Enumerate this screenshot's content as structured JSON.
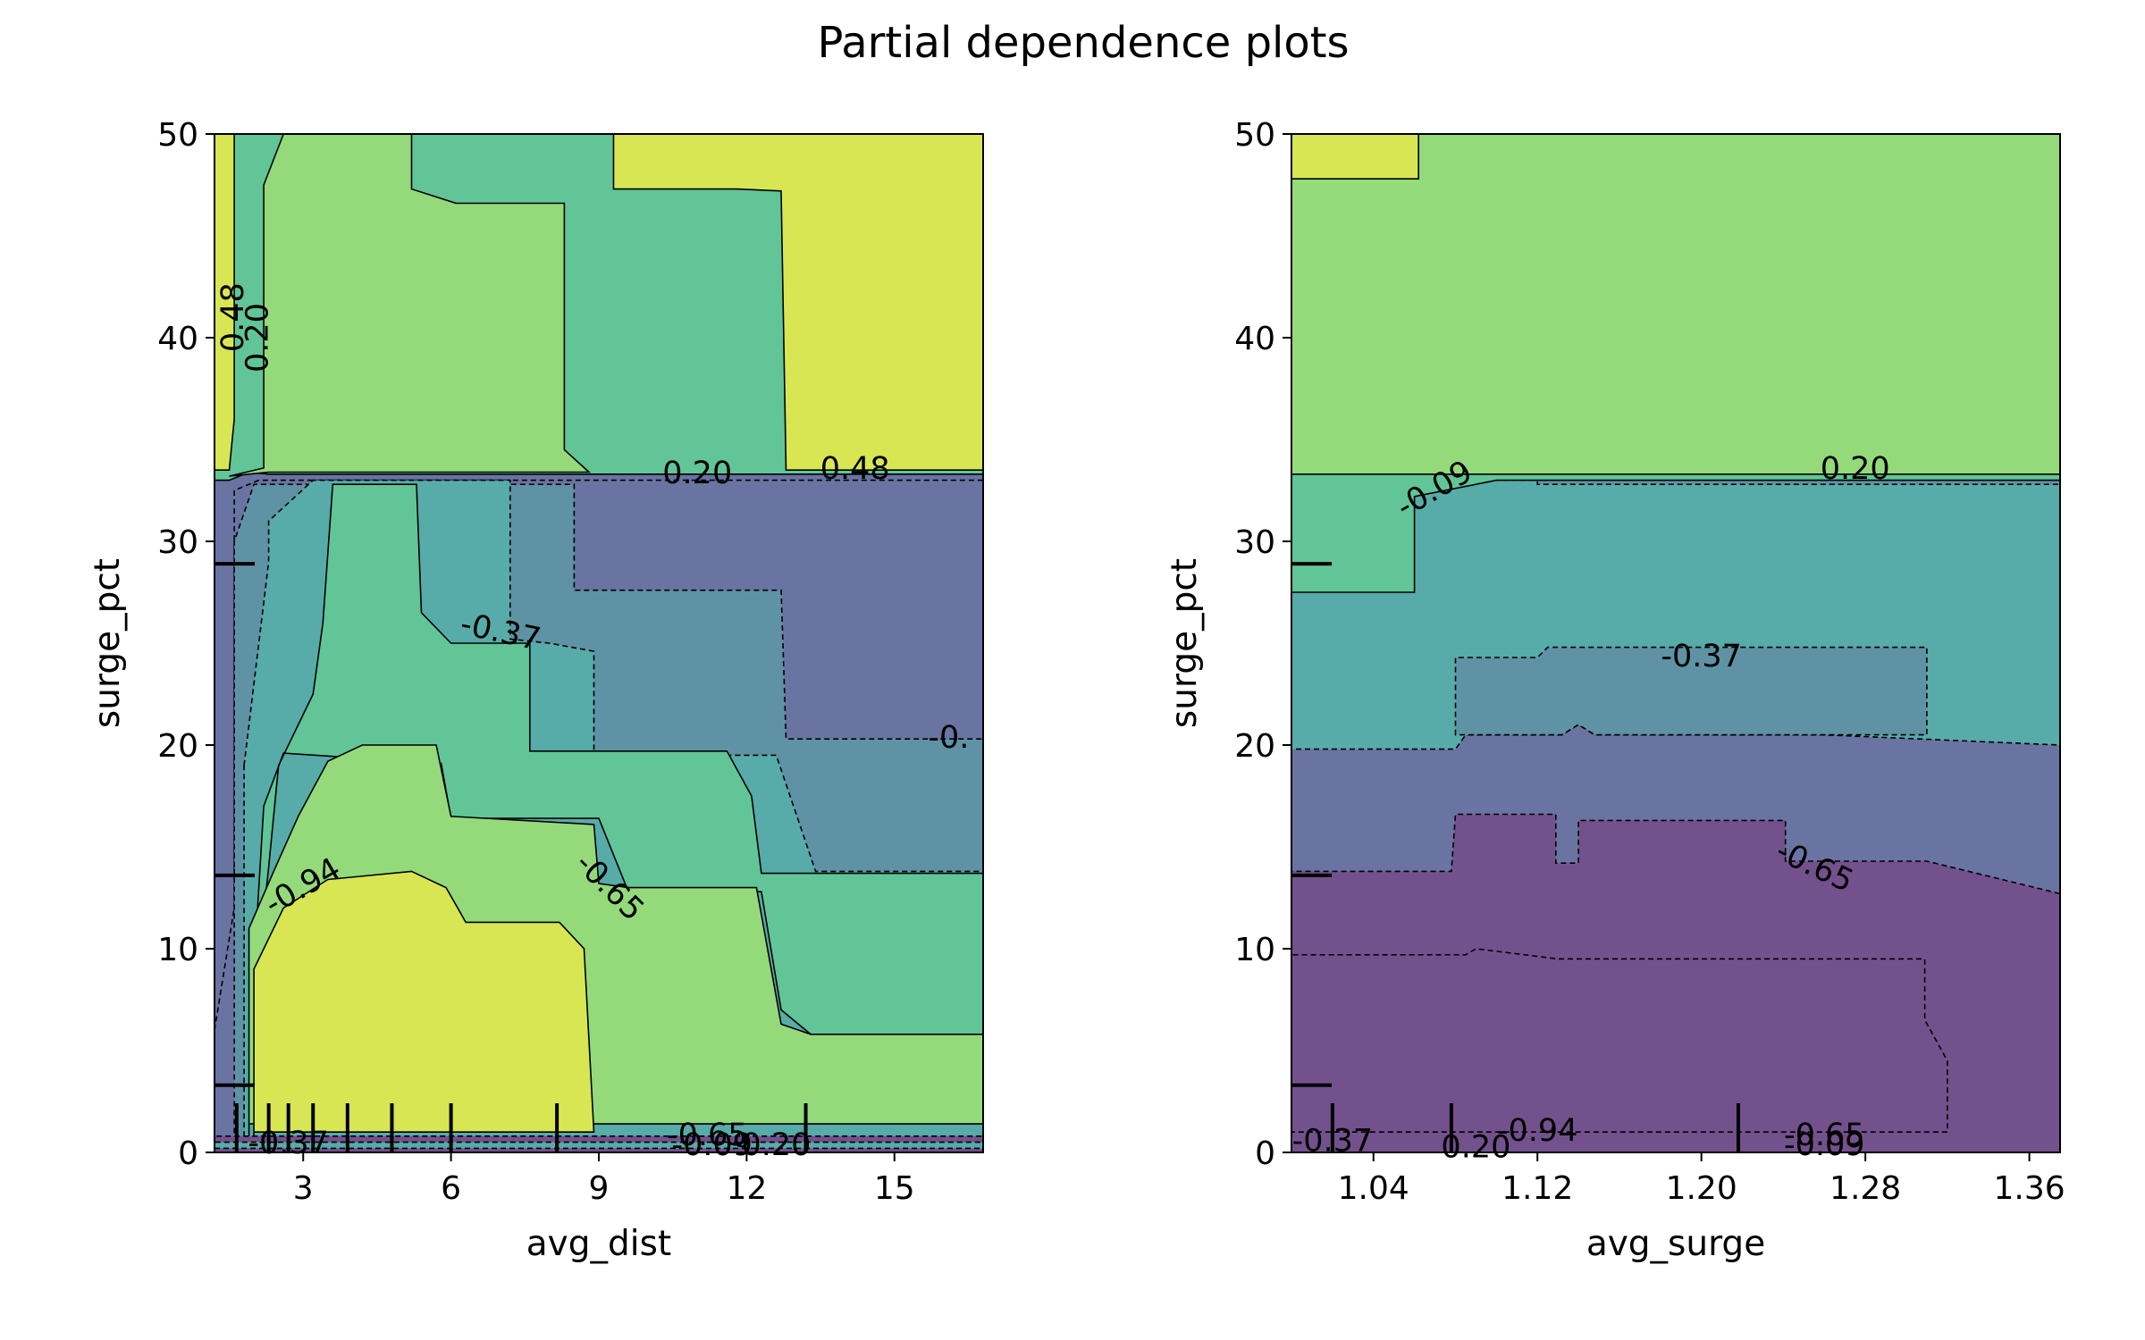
{
  "figure": {
    "title": "Partial dependence plots"
  },
  "colors": {
    "levels": [
      "#73518d",
      "#6a74a3",
      "#5f92a5",
      "#57aba9",
      "#61c597",
      "#94da7b",
      "#d8e653"
    ],
    "line": "#000000"
  },
  "chart_data": [
    {
      "type": "heatmap",
      "subtype": "contour",
      "title": "",
      "xlabel": "avg_dist",
      "ylabel": "surge_pct",
      "xlim": [
        1.2,
        16.8
      ],
      "ylim": [
        0,
        50
      ],
      "xticks": [
        3,
        6,
        9,
        12,
        15
      ],
      "yticks": [
        0,
        10,
        20,
        30,
        40,
        50
      ],
      "contour_levels": [
        -0.94,
        -0.65,
        -0.37,
        -0.09,
        0.2,
        0.48
      ],
      "contour_labels": [
        {
          "text": "0.48",
          "x": 1.6,
          "y": 41,
          "angle": -90
        },
        {
          "text": "0.20",
          "x": 2.1,
          "y": 40,
          "angle": -90
        },
        {
          "text": "0.20",
          "x": 11.0,
          "y": 33.3,
          "angle": 0
        },
        {
          "text": "0.48",
          "x": 14.2,
          "y": 33.5,
          "angle": 0
        },
        {
          "text": "-0.37",
          "x": 7.0,
          "y": 25.5,
          "angle": 12
        },
        {
          "text": "-0.",
          "x": 16.1,
          "y": 20.3,
          "angle": 0
        },
        {
          "text": "-0.94",
          "x": 3.0,
          "y": 13.0,
          "angle": -30
        },
        {
          "text": "-0.65",
          "x": 9.2,
          "y": 13.0,
          "angle": 45
        },
        {
          "text": "-0.37",
          "x": 2.7,
          "y": 0.4,
          "angle": 0
        },
        {
          "text": "-0.65",
          "x": 11.2,
          "y": 0.8,
          "angle": 0
        },
        {
          "text": "-0.09",
          "x": 11.3,
          "y": 0.3,
          "angle": 0
        },
        {
          "text": "0.20",
          "x": 12.6,
          "y": 0.3,
          "angle": 0
        }
      ],
      "rug_x": [
        1.65,
        2.3,
        2.7,
        3.2,
        3.9,
        4.8,
        6.0,
        8.15,
        13.2
      ],
      "rug_y": [
        3.3,
        13.6,
        28.9
      ],
      "regions": [
        {
          "level": 1,
          "poly": [
            [
              1.2,
              6
            ],
            [
              1.6,
              12
            ],
            [
              1.6,
              32.5
            ],
            [
              2.1,
              33
            ],
            [
              16.8,
              33
            ],
            [
              16.8,
              0
            ],
            [
              1.2,
              0
            ]
          ]
        },
        {
          "level": 2,
          "poly": [
            [
              1.6,
              14
            ],
            [
              1.6,
              30
            ],
            [
              2.0,
              32.8
            ],
            [
              8.5,
              32.8
            ],
            [
              8.5,
              27.6
            ],
            [
              12.7,
              27.6
            ],
            [
              12.8,
              20.3
            ],
            [
              16.8,
              20.3
            ],
            [
              16.8,
              0
            ],
            [
              1.6,
              0
            ]
          ]
        },
        {
          "level": 3,
          "poly": [
            [
              1.8,
              19
            ],
            [
              2.3,
              29
            ],
            [
              2.3,
              31
            ],
            [
              3.2,
              33
            ],
            [
              7.2,
              33
            ],
            [
              7.2,
              25.2
            ],
            [
              8.0,
              25.0
            ],
            [
              8.0,
              25.0
            ],
            [
              8.9,
              24.6
            ],
            [
              8.9,
              19.5
            ],
            [
              12.6,
              19.5
            ],
            [
              13.4,
              13.8
            ],
            [
              16.8,
              13.8
            ],
            [
              16.8,
              0
            ],
            [
              1.8,
              0
            ]
          ]
        },
        {
          "level": 4,
          "poly": [
            [
              1.9,
              5
            ],
            [
              2.3,
              14
            ],
            [
              2.5,
              19
            ],
            [
              3.2,
              22.5
            ],
            [
              3.4,
              26
            ],
            [
              3.6,
              32.8
            ],
            [
              5.3,
              32.8
            ],
            [
              5.4,
              26.5
            ],
            [
              6.0,
              25
            ],
            [
              7.2,
              25
            ],
            [
              7.6,
              25
            ],
            [
              7.6,
              19.7
            ],
            [
              11.6,
              19.7
            ],
            [
              12.1,
              17.5
            ],
            [
              12.3,
              13.7
            ],
            [
              13.1,
              13.7
            ],
            [
              16.8,
              13.7
            ],
            [
              16.8,
              5.8
            ],
            [
              13.3,
              5.8
            ],
            [
              12.7,
              7
            ],
            [
              12.3,
              12.8
            ],
            [
              9.6,
              12.8
            ],
            [
              9.0,
              16.4
            ],
            [
              6.0,
              16.4
            ],
            [
              5.8,
              19.1
            ],
            [
              2.6,
              19.6
            ],
            [
              2.2,
              17
            ],
            [
              1.9,
              5
            ]
          ]
        },
        {
          "level": 5,
          "poly": [
            [
              1.9,
              0
            ],
            [
              1.9,
              11
            ],
            [
              2.4,
              13.8
            ],
            [
              2.9,
              16.5
            ],
            [
              3.5,
              19.2
            ],
            [
              4.2,
              20.0
            ],
            [
              5.7,
              20
            ],
            [
              6.0,
              16.5
            ],
            [
              8.9,
              16.1
            ],
            [
              9.0,
              13.2
            ],
            [
              9.6,
              13.0
            ],
            [
              12.2,
              13.0
            ],
            [
              12.7,
              6.3
            ],
            [
              13.3,
              5.8
            ],
            [
              16.8,
              5.8
            ],
            [
              16.8,
              1.4
            ],
            [
              1.9,
              1.4
            ]
          ]
        },
        {
          "level": 6,
          "poly": [
            [
              2.0,
              0.8
            ],
            [
              2.0,
              9
            ],
            [
              2.6,
              12.0
            ],
            [
              3.5,
              13.4
            ],
            [
              5.2,
              13.8
            ],
            [
              5.9,
              13.0
            ],
            [
              6.3,
              11.3
            ],
            [
              8.2,
              11.3
            ],
            [
              8.7,
              10.0
            ],
            [
              8.9,
              1.0
            ],
            [
              2.0,
              1.0
            ]
          ]
        },
        {
          "level": 0,
          "poly": [
            [
              1.2,
              0
            ],
            [
              16.8,
              0
            ],
            [
              16.8,
              0.8
            ],
            [
              1.2,
              0.8
            ]
          ]
        },
        {
          "level": 3,
          "poly": [
            [
              1.2,
              0.2
            ],
            [
              16.8,
              0.2
            ],
            [
              16.8,
              0.5
            ],
            [
              1.2,
              0.5
            ]
          ]
        },
        {
          "level": 4,
          "poly": [
            [
              1.5,
              33
            ],
            [
              1.9,
              33.4
            ],
            [
              2.3,
              33.3
            ],
            [
              16.8,
              33.3
            ],
            [
              16.8,
              50
            ],
            [
              1.2,
              50
            ],
            [
              1.2,
              33
            ]
          ]
        },
        {
          "level": 5,
          "poly": [
            [
              1.5,
              33.2
            ],
            [
              1.9,
              33.3
            ],
            [
              2.3,
              33.4
            ],
            [
              8.8,
              33.4
            ],
            [
              8.3,
              34.5
            ],
            [
              8.3,
              46.6
            ],
            [
              6.1,
              46.6
            ],
            [
              5.2,
              47.3
            ],
            [
              5.2,
              50
            ],
            [
              2.8,
              50
            ],
            [
              2.6,
              50
            ],
            [
              2.2,
              47.5
            ],
            [
              2.2,
              33.6
            ]
          ]
        },
        {
          "level": 6,
          "poly": [
            [
              1.2,
              33.5
            ],
            [
              1.5,
              33.5
            ],
            [
              1.6,
              36
            ],
            [
              1.6,
              50
            ],
            [
              1.2,
              50
            ]
          ]
        },
        {
          "level": 6,
          "poly": [
            [
              9.3,
              50
            ],
            [
              9.3,
              47.3
            ],
            [
              11.8,
              47.3
            ],
            [
              12.7,
              47.2
            ],
            [
              12.8,
              33.5
            ],
            [
              16.8,
              33.5
            ],
            [
              16.8,
              50
            ]
          ]
        }
      ]
    },
    {
      "type": "heatmap",
      "subtype": "contour",
      "title": "",
      "xlabel": "avg_surge",
      "ylabel": "surge_pct",
      "xlim": [
        1.0,
        1.375
      ],
      "ylim": [
        0,
        50
      ],
      "xticks": [
        1.04,
        1.12,
        1.2,
        1.28,
        1.36
      ],
      "xtick_labels": [
        "1.04",
        "1.12",
        "1.20",
        "1.28",
        "1.36"
      ],
      "yticks": [
        0,
        10,
        20,
        30,
        40,
        50
      ],
      "contour_levels": [
        -0.94,
        -0.65,
        -0.37,
        -0.09,
        0.2,
        0.48
      ],
      "contour_labels": [
        {
          "text": "-0.09",
          "x": 1.07,
          "y": 32.5,
          "angle": -30
        },
        {
          "text": "0.20",
          "x": 1.275,
          "y": 33.5,
          "angle": 0
        },
        {
          "text": "-0.37",
          "x": 1.2,
          "y": 24.3,
          "angle": 0
        },
        {
          "text": "-0.65",
          "x": 1.255,
          "y": 14,
          "angle": 25
        },
        {
          "text": "-0.37",
          "x": 1.02,
          "y": 0.5,
          "angle": 0
        },
        {
          "text": "0.20",
          "x": 1.09,
          "y": 0.2,
          "angle": 0
        },
        {
          "text": "-0.94",
          "x": 1.12,
          "y": 1.0,
          "angle": 0
        },
        {
          "text": "-0.65",
          "x": 1.26,
          "y": 0.8,
          "angle": 0
        },
        {
          "text": "-0.09",
          "x": 1.26,
          "y": 0.3,
          "angle": 0
        }
      ],
      "rug_x": [
        1.02,
        1.078,
        1.218
      ],
      "rug_y": [
        3.3,
        13.6,
        28.9
      ],
      "regions": [
        {
          "level": 2,
          "poly": [
            [
              1.0,
              0
            ],
            [
              1.375,
              0
            ],
            [
              1.375,
              33.3
            ],
            [
              1.0,
              33.3
            ]
          ]
        },
        {
          "level": 3,
          "poly": [
            [
              1.0,
              0
            ],
            [
              1.375,
              0
            ],
            [
              1.375,
              32.8
            ],
            [
              1.12,
              32.8
            ],
            [
              1.12,
              33
            ],
            [
              1.0,
              33
            ]
          ]
        },
        {
          "level": 1,
          "poly": [
            [
              1.0,
              0
            ],
            [
              1.375,
              0
            ],
            [
              1.375,
              20
            ],
            [
              1.26,
              20.5
            ],
            [
              1.148,
              20.5
            ],
            [
              1.14,
              21
            ],
            [
              1.132,
              20.5
            ],
            [
              1.085,
              20.5
            ],
            [
              1.08,
              19.8
            ],
            [
              1.0,
              19.8
            ]
          ]
        },
        {
          "level": 0,
          "poly": [
            [
              1.0,
              0
            ],
            [
              1.375,
              0
            ],
            [
              1.375,
              12.7
            ],
            [
              1.31,
              14.3
            ],
            [
              1.241,
              14.3
            ],
            [
              1.241,
              16.3
            ],
            [
              1.14,
              16.3
            ],
            [
              1.14,
              14.2
            ],
            [
              1.129,
              14.2
            ],
            [
              1.129,
              16.6
            ],
            [
              1.08,
              16.6
            ],
            [
              1.078,
              13.8
            ],
            [
              1.07,
              13.8
            ],
            [
              1.0,
              13.8
            ]
          ]
        },
        {
          "level": 5,
          "poly": [
            [
              1.0,
              33.3
            ],
            [
              1.375,
              33.3
            ],
            [
              1.375,
              50
            ],
            [
              1.0,
              50
            ]
          ]
        },
        {
          "level": 4,
          "poly": [
            [
              1.0,
              27.5
            ],
            [
              1.06,
              27.5
            ],
            [
              1.06,
              32.2
            ],
            [
              1.1,
              33.0
            ],
            [
              1.375,
              33.0
            ],
            [
              1.375,
              33.3
            ],
            [
              1.0,
              33.3
            ]
          ]
        },
        {
          "level": 6,
          "poly": [
            [
              1.0,
              47.8
            ],
            [
              1.062,
              47.8
            ],
            [
              1.062,
              50
            ],
            [
              1.0,
              50
            ]
          ]
        },
        {
          "level": 2,
          "poly": [
            [
              1.08,
              20.5
            ],
            [
              1.08,
              24.3
            ],
            [
              1.12,
              24.3
            ],
            [
              1.125,
              24.8
            ],
            [
              1.31,
              24.8
            ],
            [
              1.31,
              20.5
            ],
            [
              1.148,
              20.5
            ],
            [
              1.14,
              21
            ],
            [
              1.132,
              20.5
            ]
          ]
        },
        {
          "level": 0,
          "poly": [
            [
              1.0,
              1.0
            ],
            [
              1.0,
              9.7
            ],
            [
              1.085,
              9.7
            ],
            [
              1.09,
              10.0
            ],
            [
              1.13,
              9.5
            ],
            [
              1.309,
              9.5
            ],
            [
              1.309,
              6.5
            ],
            [
              1.32,
              4.5
            ],
            [
              1.32,
              1.0
            ]
          ]
        }
      ]
    }
  ]
}
